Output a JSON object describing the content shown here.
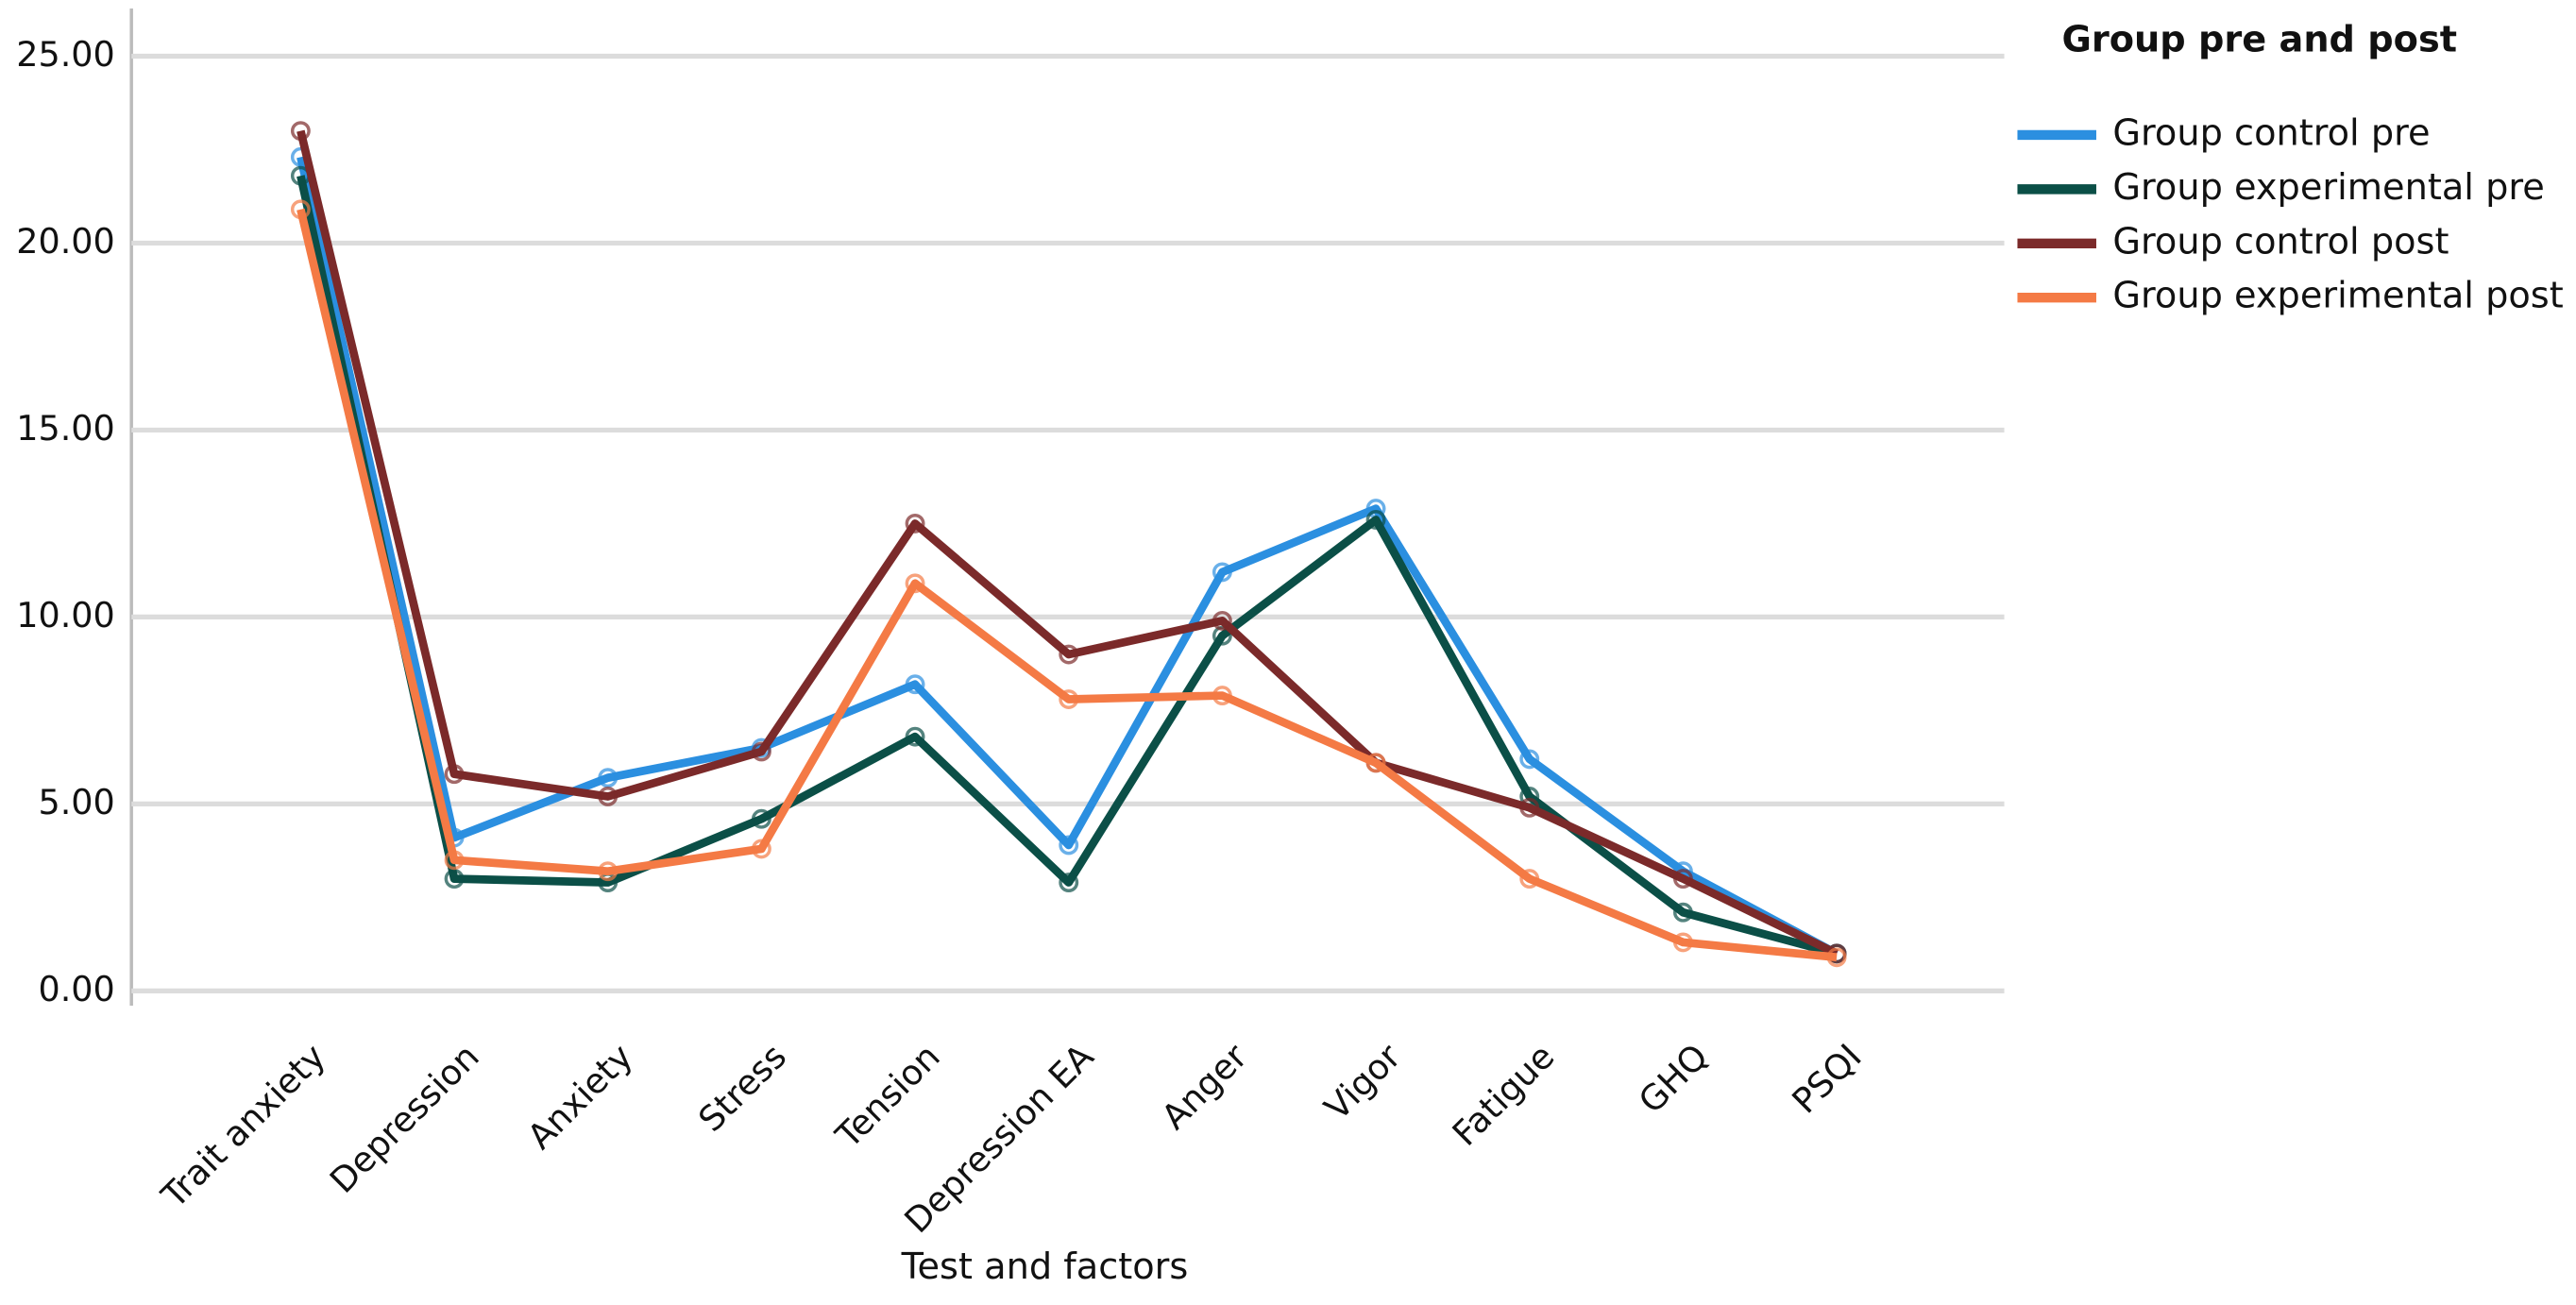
{
  "chart_data": {
    "type": "line",
    "x_label": "Test and factors",
    "legend_title": "Group pre and post",
    "legend": "right",
    "grid": true,
    "categories": [
      "Trait anxiety",
      "Depression",
      "Anxiety",
      "Stress",
      "Tension",
      "Depression EA",
      "Anger",
      "Vigor",
      "Fatigue",
      "GHQ",
      "PSQI"
    ],
    "series": [
      {
        "name": "Group control pre",
        "color": "#2b8fe0",
        "values": [
          22.3,
          4.1,
          5.7,
          6.5,
          8.2,
          3.9,
          11.2,
          12.9,
          6.2,
          3.2,
          1.0
        ]
      },
      {
        "name": "Group experimental pre",
        "color": "#0b4f47",
        "values": [
          21.8,
          3.0,
          2.9,
          4.6,
          6.8,
          2.9,
          9.5,
          12.6,
          5.2,
          2.1,
          1.0
        ]
      },
      {
        "name": "Group control post",
        "color": "#7b2a2a",
        "values": [
          23.0,
          5.8,
          5.2,
          6.4,
          12.5,
          9.0,
          9.9,
          6.1,
          4.9,
          3.0,
          1.0
        ]
      },
      {
        "name": "Group experimental post",
        "color": "#f47a45",
        "values": [
          20.9,
          3.5,
          3.2,
          3.8,
          10.9,
          7.8,
          7.9,
          6.1,
          3.0,
          1.3,
          0.9
        ]
      }
    ],
    "ylim": [
      0,
      25
    ],
    "yticks": [
      {
        "value": 0,
        "label": "0.00"
      },
      {
        "value": 5,
        "label": "5.00"
      },
      {
        "value": 10,
        "label": "10.00"
      },
      {
        "value": 15,
        "label": "15.00"
      },
      {
        "value": 20,
        "label": "20.00"
      },
      {
        "value": 25,
        "label": "25.00"
      }
    ]
  }
}
